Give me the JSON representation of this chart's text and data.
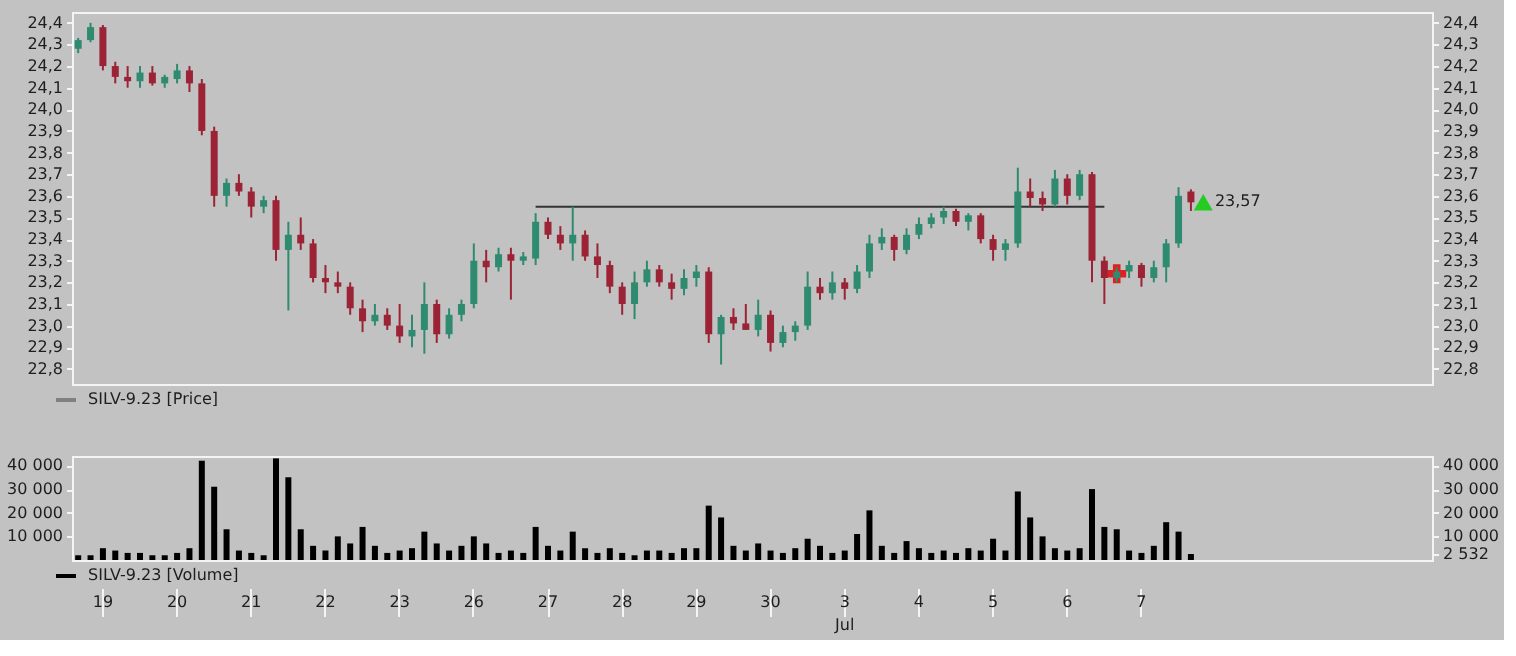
{
  "chart_data": [
    {
      "type": "candlestick",
      "legend": "bottom",
      "tick_labels": "y",
      "categories": [
        null,
        null,
        "19",
        null,
        null,
        null,
        null,
        null,
        "20",
        null,
        null,
        null,
        null,
        null,
        "21",
        null,
        null,
        null,
        null,
        null,
        "22",
        null,
        null,
        null,
        null,
        null,
        "23",
        null,
        null,
        null,
        null,
        null,
        "26",
        null,
        null,
        null,
        null,
        null,
        "27",
        null,
        null,
        null,
        null,
        null,
        "28",
        null,
        null,
        null,
        null,
        null,
        "29",
        null,
        null,
        null,
        null,
        null,
        "30",
        null,
        null,
        null,
        null,
        null,
        "3",
        null,
        null,
        null,
        null,
        null,
        "4",
        null,
        null,
        null,
        null,
        null,
        "5",
        null,
        null,
        null,
        null,
        null,
        "6",
        null,
        null,
        null,
        null,
        null,
        "7",
        null,
        null,
        null,
        null,
        null,
        null,
        null,
        null,
        null,
        null,
        null,
        null,
        null,
        null,
        null,
        null,
        null,
        null,
        null,
        null,
        null,
        null,
        null
      ],
      "ylim": [
        22.73,
        24.45
      ],
      "yticks": [
        {
          "value": 22.8,
          "label": "22,8"
        },
        {
          "value": 22.9,
          "label": "22,9"
        },
        {
          "value": 23.0,
          "label": "23,0"
        },
        {
          "value": 23.1,
          "label": "23,1"
        },
        {
          "value": 23.2,
          "label": "23,2"
        },
        {
          "value": 23.3,
          "label": "23,3"
        },
        {
          "value": 23.4,
          "label": "23,4"
        },
        {
          "value": 23.5,
          "label": "23,5"
        },
        {
          "value": 23.6,
          "label": "23,6"
        },
        {
          "value": 23.7,
          "label": "23,7"
        },
        {
          "value": 23.8,
          "label": "23,8"
        },
        {
          "value": 23.9,
          "label": "23,9"
        },
        {
          "value": 24.0,
          "label": "24,0"
        },
        {
          "value": 24.1,
          "label": "24,1"
        },
        {
          "value": 24.2,
          "label": "24,2"
        },
        {
          "value": 24.3,
          "label": "24,3"
        },
        {
          "value": 24.4,
          "label": "24,4"
        }
      ],
      "y2lim": [
        22.73,
        24.45
      ],
      "y2ticks": [
        {
          "value": 22.8,
          "label": "22,8"
        },
        {
          "value": 22.9,
          "label": "22,9"
        },
        {
          "value": 23.0,
          "label": "23,0"
        },
        {
          "value": 23.1,
          "label": "23,1"
        },
        {
          "value": 23.2,
          "label": "23,2"
        },
        {
          "value": 23.3,
          "label": "23,3"
        },
        {
          "value": 23.4,
          "label": "23,4"
        },
        {
          "value": 23.5,
          "label": "23,5"
        },
        {
          "value": 23.6,
          "label": "23,6"
        },
        {
          "value": 23.7,
          "label": "23,7"
        },
        {
          "value": 23.8,
          "label": "23,8"
        },
        {
          "value": 23.9,
          "label": "23,9"
        },
        {
          "value": 24.0,
          "label": "24,0"
        },
        {
          "value": 24.1,
          "label": "24,1"
        },
        {
          "value": 24.2,
          "label": "24,2"
        },
        {
          "value": 24.3,
          "label": "24,3"
        },
        {
          "value": 24.4,
          "label": "24,4"
        }
      ],
      "series": [
        {
          "name": "SILV-9.23 [Price]",
          "type": "candlestick",
          "color": "#808080",
          "colors": [
            "#2e8b6f",
            "#2e8b6f",
            "#9b2335",
            "#9b2335",
            "#9b2335",
            "#2e8b6f",
            "#9b2335",
            "#2e8b6f",
            "#2e8b6f",
            "#9b2335",
            "#9b2335",
            "#9b2335",
            "#2e8b6f",
            "#9b2335",
            "#9b2335",
            "#2e8b6f",
            "#9b2335",
            "#2e8b6f",
            "#9b2335",
            "#9b2335",
            "#9b2335",
            "#9b2335",
            "#9b2335",
            "#9b2335",
            "#2e8b6f",
            "#9b2335",
            "#9b2335",
            "#2e8b6f",
            "#2e8b6f",
            "#9b2335",
            "#2e8b6f",
            "#2e8b6f",
            "#2e8b6f",
            "#9b2335",
            "#2e8b6f",
            "#9b2335",
            "#2e8b6f",
            "#2e8b6f",
            "#9b2335",
            "#9b2335",
            "#2e8b6f",
            "#9b2335",
            "#9b2335",
            "#9b2335",
            "#9b2335",
            "#2e8b6f",
            "#2e8b6f",
            "#9b2335",
            "#9b2335",
            "#2e8b6f",
            "#2e8b6f",
            "#9b2335",
            "#2e8b6f",
            "#9b2335",
            "#9b2335",
            "#2e8b6f",
            "#9b2335",
            "#2e8b6f",
            "#2e8b6f",
            "#2e8b6f",
            "#9b2335",
            "#2e8b6f",
            "#9b2335",
            "#2e8b6f",
            "#2e8b6f",
            "#2e8b6f",
            "#9b2335",
            "#2e8b6f",
            "#2e8b6f",
            "#2e8b6f",
            "#2e8b6f",
            "#9b2335",
            "#2e8b6f",
            "#9b2335",
            "#9b2335",
            "#2e8b6f",
            "#2e8b6f",
            "#9b2335",
            "#9b2335",
            "#2e8b6f",
            "#9b2335",
            "#2e8b6f",
            "#9b2335",
            "#9b2335",
            "#2e8b6f",
            "#2e8b6f",
            "#9b2335",
            "#2e8b6f",
            "#2e8b6f",
            "#2e8b6f",
            "#9b2335",
            null,
            null,
            null,
            null,
            null,
            null,
            null,
            null,
            null,
            null,
            null,
            null,
            null,
            null,
            null,
            null,
            null,
            null,
            null
          ],
          "ohlc": [
            [
              24.28,
              24.33,
              24.26,
              24.32
            ],
            [
              24.32,
              24.4,
              24.31,
              24.38
            ],
            [
              24.38,
              24.39,
              24.18,
              24.2
            ],
            [
              24.2,
              24.22,
              24.12,
              24.15
            ],
            [
              24.15,
              24.2,
              24.1,
              24.13
            ],
            [
              24.13,
              24.2,
              24.1,
              24.17
            ],
            [
              24.17,
              24.2,
              24.11,
              24.12
            ],
            [
              24.12,
              24.16,
              24.1,
              24.15
            ],
            [
              24.14,
              24.21,
              24.12,
              24.18
            ],
            [
              24.18,
              24.2,
              24.08,
              24.12
            ],
            [
              24.12,
              24.14,
              23.88,
              23.9
            ],
            [
              23.9,
              23.92,
              23.55,
              23.6
            ],
            [
              23.6,
              23.68,
              23.55,
              23.66
            ],
            [
              23.66,
              23.7,
              23.6,
              23.62
            ],
            [
              23.62,
              23.64,
              23.5,
              23.55
            ],
            [
              23.55,
              23.6,
              23.52,
              23.58
            ],
            [
              23.58,
              23.6,
              23.3,
              23.35
            ],
            [
              23.35,
              23.48,
              23.07,
              23.42
            ],
            [
              23.42,
              23.5,
              23.35,
              23.38
            ],
            [
              23.38,
              23.4,
              23.2,
              23.22
            ],
            [
              23.22,
              23.28,
              23.15,
              23.2
            ],
            [
              23.2,
              23.25,
              23.15,
              23.18
            ],
            [
              23.18,
              23.2,
              23.05,
              23.08
            ],
            [
              23.08,
              23.12,
              22.97,
              23.02
            ],
            [
              23.02,
              23.1,
              23.0,
              23.05
            ],
            [
              23.05,
              23.08,
              22.98,
              23.0
            ],
            [
              23.0,
              23.1,
              22.92,
              22.95
            ],
            [
              22.95,
              23.05,
              22.9,
              22.98
            ],
            [
              22.98,
              23.2,
              22.87,
              23.1
            ],
            [
              23.1,
              23.12,
              22.92,
              22.96
            ],
            [
              22.96,
              23.08,
              22.94,
              23.05
            ],
            [
              23.05,
              23.12,
              23.02,
              23.1
            ],
            [
              23.1,
              23.38,
              23.08,
              23.3
            ],
            [
              23.3,
              23.35,
              23.2,
              23.27
            ],
            [
              23.27,
              23.36,
              23.25,
              23.33
            ],
            [
              23.33,
              23.36,
              23.12,
              23.3
            ],
            [
              23.3,
              23.34,
              23.28,
              23.32
            ],
            [
              23.31,
              23.52,
              23.28,
              23.48
            ],
            [
              23.48,
              23.5,
              23.4,
              23.42
            ],
            [
              23.42,
              23.46,
              23.35,
              23.38
            ],
            [
              23.38,
              23.55,
              23.3,
              23.42
            ],
            [
              23.42,
              23.44,
              23.3,
              23.32
            ],
            [
              23.32,
              23.38,
              23.22,
              23.28
            ],
            [
              23.28,
              23.3,
              23.15,
              23.18
            ],
            [
              23.18,
              23.2,
              23.05,
              23.1
            ],
            [
              23.1,
              23.25,
              23.03,
              23.2
            ],
            [
              23.2,
              23.3,
              23.18,
              23.26
            ],
            [
              23.26,
              23.28,
              23.18,
              23.2
            ],
            [
              23.2,
              23.24,
              23.12,
              23.17
            ],
            [
              23.17,
              23.26,
              23.14,
              23.22
            ],
            [
              23.22,
              23.28,
              23.18,
              23.25
            ],
            [
              23.25,
              23.27,
              22.92,
              22.96
            ],
            [
              22.96,
              23.05,
              22.82,
              23.04
            ],
            [
              23.04,
              23.08,
              22.98,
              23.01
            ],
            [
              23.01,
              23.1,
              22.98,
              22.98
            ],
            [
              22.98,
              23.12,
              22.95,
              23.05
            ],
            [
              23.05,
              23.07,
              22.88,
              22.92
            ],
            [
              22.92,
              23.0,
              22.9,
              22.97
            ],
            [
              22.97,
              23.02,
              22.93,
              23.0
            ],
            [
              23.0,
              23.25,
              22.98,
              23.18
            ],
            [
              23.18,
              23.22,
              23.12,
              23.15
            ],
            [
              23.15,
              23.25,
              23.12,
              23.2
            ],
            [
              23.2,
              23.22,
              23.12,
              23.17
            ],
            [
              23.17,
              23.28,
              23.15,
              23.25
            ],
            [
              23.25,
              23.42,
              23.22,
              23.38
            ],
            [
              23.38,
              23.45,
              23.35,
              23.41
            ],
            [
              23.41,
              23.42,
              23.3,
              23.35
            ],
            [
              23.35,
              23.45,
              23.33,
              23.42
            ],
            [
              23.42,
              23.5,
              23.4,
              23.47
            ],
            [
              23.47,
              23.52,
              23.45,
              23.5
            ],
            [
              23.5,
              23.55,
              23.47,
              23.53
            ],
            [
              23.53,
              23.54,
              23.46,
              23.48
            ],
            [
              23.48,
              23.52,
              23.44,
              23.51
            ],
            [
              23.51,
              23.52,
              23.38,
              23.4
            ],
            [
              23.4,
              23.42,
              23.3,
              23.35
            ],
            [
              23.35,
              23.4,
              23.3,
              23.38
            ],
            [
              23.38,
              23.73,
              23.36,
              23.62
            ],
            [
              23.62,
              23.68,
              23.55,
              23.59
            ],
            [
              23.59,
              23.62,
              23.53,
              23.56
            ],
            [
              23.56,
              23.72,
              23.55,
              23.68
            ],
            [
              23.68,
              23.7,
              23.56,
              23.6
            ],
            [
              23.6,
              23.72,
              23.58,
              23.7
            ],
            [
              23.7,
              23.71,
              23.2,
              23.3
            ],
            [
              23.3,
              23.32,
              23.1,
              23.22
            ],
            [
              23.22,
              23.27,
              23.2,
              23.25
            ],
            [
              23.25,
              23.3,
              23.22,
              23.28
            ],
            [
              23.28,
              23.29,
              23.18,
              23.22
            ],
            [
              23.22,
              23.3,
              23.2,
              23.27
            ],
            [
              23.27,
              23.4,
              23.2,
              23.38
            ],
            [
              23.38,
              23.64,
              23.36,
              23.6
            ],
            [
              23.62,
              23.63,
              23.53,
              23.57
            ],
            null,
            null,
            null,
            null,
            null,
            null,
            null,
            null,
            null,
            null,
            null,
            null,
            null,
            null,
            null,
            null,
            null,
            null,
            null
          ],
          "value_labels": [
            null,
            null,
            null,
            null,
            null,
            null,
            null,
            null,
            null,
            null,
            null,
            null,
            null,
            null,
            null,
            null,
            null,
            null,
            null,
            null,
            null,
            null,
            null,
            null,
            null,
            null,
            null,
            null,
            null,
            null,
            null,
            null,
            null,
            null,
            null,
            null,
            null,
            null,
            null,
            null,
            null,
            null,
            null,
            null,
            null,
            null,
            null,
            null,
            null,
            null,
            null,
            null,
            null,
            null,
            null,
            null,
            null,
            null,
            null,
            null,
            null,
            null,
            null,
            null,
            null,
            null,
            null,
            null,
            null,
            null,
            null,
            null,
            null,
            null,
            null,
            null,
            null,
            null,
            null,
            null,
            null,
            null,
            null,
            null,
            null,
            null,
            null,
            null,
            null,
            null,
            "23,57",
            null,
            null,
            null,
            null,
            null,
            null,
            null,
            null,
            null,
            null,
            null,
            null,
            null,
            null,
            null,
            null,
            null,
            null,
            null
          ]
        },
        {
          "type": "line",
          "color": "#333333",
          "line_style": "solid",
          "values": [
            null,
            null,
            null,
            null,
            null,
            null,
            null,
            null,
            null,
            null,
            null,
            null,
            null,
            null,
            null,
            null,
            null,
            null,
            null,
            null,
            null,
            null,
            null,
            null,
            null,
            null,
            null,
            null,
            null,
            null,
            null,
            null,
            null,
            null,
            null,
            null,
            null,
            23.55,
            null,
            null,
            null,
            null,
            null,
            null,
            null,
            null,
            null,
            null,
            null,
            null,
            null,
            null,
            null,
            null,
            null,
            null,
            null,
            null,
            null,
            null,
            null,
            null,
            null,
            null,
            null,
            null,
            null,
            null,
            null,
            null,
            null,
            null,
            null,
            null,
            null,
            null,
            null,
            null,
            null,
            null,
            null,
            null,
            null,
            23.55,
            null,
            null,
            null,
            null,
            null,
            null,
            null,
            null,
            null,
            null,
            null,
            null,
            null,
            null,
            null,
            null,
            null,
            null,
            null,
            null,
            null,
            null,
            null,
            null,
            null,
            null
          ]
        },
        {
          "type": "scatter",
          "marker": "cross",
          "color": "#e02020",
          "values": [
            null,
            null,
            null,
            null,
            null,
            null,
            null,
            null,
            null,
            null,
            null,
            null,
            null,
            null,
            null,
            null,
            null,
            null,
            null,
            null,
            null,
            null,
            null,
            null,
            null,
            null,
            null,
            null,
            null,
            null,
            null,
            null,
            null,
            null,
            null,
            null,
            null,
            null,
            null,
            null,
            null,
            null,
            null,
            null,
            null,
            null,
            null,
            null,
            null,
            null,
            null,
            null,
            null,
            null,
            null,
            null,
            null,
            null,
            null,
            null,
            null,
            null,
            null,
            null,
            null,
            null,
            null,
            null,
            null,
            null,
            null,
            null,
            null,
            null,
            null,
            null,
            null,
            null,
            null,
            null,
            null,
            null,
            null,
            null,
            23.24,
            null,
            null,
            null,
            null,
            null,
            null,
            null,
            null,
            null,
            null,
            null,
            null,
            null,
            null,
            null,
            null,
            null,
            null,
            null,
            null,
            null,
            null,
            null,
            null,
            null
          ]
        },
        {
          "type": "scatter",
          "marker": "triangle",
          "color": "#22cc22",
          "values": [
            null,
            null,
            null,
            null,
            null,
            null,
            null,
            null,
            null,
            null,
            null,
            null,
            null,
            null,
            null,
            null,
            null,
            null,
            null,
            null,
            null,
            null,
            null,
            null,
            null,
            null,
            null,
            null,
            null,
            null,
            null,
            null,
            null,
            null,
            null,
            null,
            null,
            null,
            null,
            null,
            null,
            null,
            null,
            null,
            null,
            null,
            null,
            null,
            null,
            null,
            null,
            null,
            null,
            null,
            null,
            null,
            null,
            null,
            null,
            null,
            null,
            null,
            null,
            null,
            null,
            null,
            null,
            null,
            null,
            null,
            null,
            null,
            null,
            null,
            null,
            null,
            null,
            null,
            null,
            null,
            null,
            null,
            null,
            null,
            null,
            null,
            null,
            null,
            null,
            null,
            null,
            23.57,
            null,
            null,
            null,
            null,
            null,
            null,
            null,
            null,
            null,
            null,
            null,
            null,
            null,
            null,
            null,
            null,
            null,
            null
          ]
        }
      ]
    },
    {
      "type": "bar",
      "legend": "bottom",
      "categories": [
        null,
        null,
        "19",
        null,
        null,
        null,
        null,
        null,
        "20",
        null,
        null,
        null,
        null,
        null,
        "21",
        null,
        null,
        null,
        null,
        null,
        "22",
        null,
        null,
        null,
        null,
        null,
        "23",
        null,
        null,
        null,
        null,
        null,
        "26",
        null,
        null,
        null,
        null,
        null,
        "27",
        null,
        null,
        null,
        null,
        null,
        "28",
        null,
        null,
        null,
        null,
        null,
        "29",
        null,
        null,
        null,
        null,
        null,
        "30",
        null,
        null,
        null,
        null,
        null,
        "3",
        null,
        null,
        null,
        null,
        null,
        "4",
        null,
        null,
        null,
        null,
        null,
        "5",
        null,
        null,
        null,
        null,
        null,
        "6",
        null,
        null,
        null,
        null,
        null,
        "7",
        null,
        null,
        null,
        null,
        null,
        null,
        null,
        null,
        null,
        null,
        null,
        null,
        null,
        null,
        null,
        null,
        null,
        null,
        null,
        null,
        null,
        null,
        null
      ],
      "ylim": [
        0,
        44000
      ],
      "yticks": [
        {
          "value": 10000,
          "label": "10 000"
        },
        {
          "value": 20000,
          "label": "20 000"
        },
        {
          "value": 30000,
          "label": "30 000"
        },
        {
          "value": 40000,
          "label": "40 000"
        }
      ],
      "y2lim": [
        0,
        44000
      ],
      "y2ticks": [
        {
          "value": 2532,
          "label": "2 532"
        },
        {
          "value": 10000,
          "label": "10 000"
        },
        {
          "value": 20000,
          "label": "20 000"
        },
        {
          "value": 30000,
          "label": "30 000"
        },
        {
          "value": 40000,
          "label": "40 000"
        }
      ],
      "annotations": [
        {
          "text": "Jul",
          "x": "3"
        }
      ],
      "series": [
        {
          "name": "SILV-9.23 [Volume]",
          "color": "#000000",
          "values": [
            2000,
            2000,
            5000,
            4000,
            3000,
            3000,
            2000,
            2000,
            3000,
            5000,
            42000,
            31000,
            13000,
            4000,
            3000,
            2000,
            43000,
            35000,
            13000,
            6000,
            4000,
            10000,
            7000,
            14000,
            6000,
            3000,
            4000,
            5000,
            12000,
            7000,
            4000,
            6000,
            10000,
            7000,
            3000,
            4000,
            3000,
            14000,
            6000,
            4000,
            12000,
            5000,
            3000,
            5000,
            3000,
            2000,
            4000,
            4000,
            3000,
            5000,
            5000,
            23000,
            18000,
            6000,
            4000,
            7000,
            4000,
            3000,
            5000,
            9000,
            6000,
            3000,
            4000,
            11000,
            21000,
            6000,
            3000,
            8000,
            5000,
            3000,
            4000,
            3000,
            5000,
            4000,
            9000,
            4000,
            29000,
            18000,
            10000,
            5000,
            4000,
            5000,
            30000,
            14000,
            13000,
            4000,
            3000,
            6000,
            16000,
            12000,
            2532,
            null,
            null,
            null,
            null,
            null,
            null,
            null,
            null,
            null,
            null,
            null,
            null,
            null,
            null,
            null,
            null,
            null,
            null,
            null
          ]
        }
      ]
    }
  ]
}
